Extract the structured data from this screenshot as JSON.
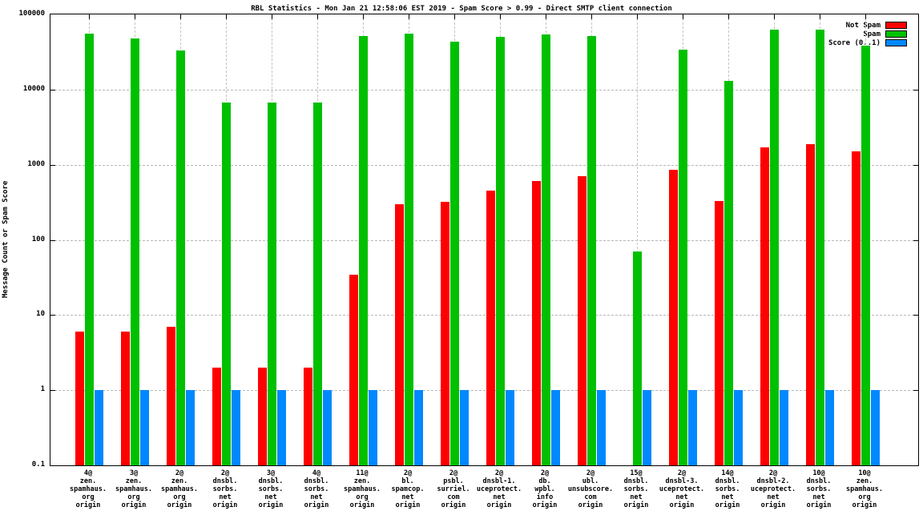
{
  "chart": {
    "title": "RBL Statistics - Mon Jan 21 12:58:06 EST 2019 - Spam Score > 0.99 - Direct SMTP client connection",
    "ylabel": "Message Count or Spam Score"
  },
  "chart_data": {
    "type": "bar",
    "title": "RBL Statistics - Mon Jan 21 12:58:06 EST 2019 - Spam Score > 0.99 - Direct SMTP client connection",
    "ylabel": "Message Count or Spam Score",
    "y_scale": "log",
    "ylim": [
      0.1,
      100000
    ],
    "y_ticks": [
      "100000",
      "10000",
      "1000",
      "100",
      "10",
      "1",
      "0.1"
    ],
    "grid": true,
    "legend_position": "top-right",
    "categories": [
      [
        "4@",
        "zen.",
        "spamhaus.",
        "org",
        "origin"
      ],
      [
        "3@",
        "zen.",
        "spamhaus.",
        "org",
        "origin"
      ],
      [
        "2@",
        "zen.",
        "spamhaus.",
        "org",
        "origin"
      ],
      [
        "2@",
        "dnsbl.",
        "sorbs.",
        "net",
        "origin"
      ],
      [
        "3@",
        "dnsbl.",
        "sorbs.",
        "net",
        "origin"
      ],
      [
        "4@",
        "dnsbl.",
        "sorbs.",
        "net",
        "origin"
      ],
      [
        "11@",
        "zen.",
        "spamhaus.",
        "org",
        "origin"
      ],
      [
        "2@",
        "bl.",
        "spamcop.",
        "net",
        "origin"
      ],
      [
        "2@",
        "psbl.",
        "surriel.",
        "com",
        "origin"
      ],
      [
        "2@",
        "dnsbl-1.",
        "uceprotect.",
        "net",
        "origin"
      ],
      [
        "2@",
        "db.",
        "wpbl.",
        "info",
        "origin"
      ],
      [
        "2@",
        "ubl.",
        "unsubscore.",
        "com",
        "origin"
      ],
      [
        "15@",
        "dnsbl.",
        "sorbs.",
        "net",
        "origin"
      ],
      [
        "2@",
        "dnsbl-3.",
        "uceprotect.",
        "net",
        "origin"
      ],
      [
        "14@",
        "dnsbl.",
        "sorbs.",
        "net",
        "origin"
      ],
      [
        "2@",
        "dnsbl-2.",
        "uceprotect.",
        "net",
        "origin"
      ],
      [
        "10@",
        "dnsbl.",
        "sorbs.",
        "net",
        "origin"
      ],
      [
        "10@",
        "zen.",
        "spamhaus.",
        "org",
        "origin"
      ]
    ],
    "series": [
      {
        "name": "Not Spam",
        "color": "#ff0000",
        "values": [
          6,
          6,
          7,
          2,
          2,
          2,
          34,
          300,
          320,
          450,
          600,
          700,
          null,
          850,
          330,
          1700,
          1900,
          1500
        ]
      },
      {
        "name": "Spam",
        "color": "#00c000",
        "values": [
          55000,
          48000,
          33000,
          6800,
          6800,
          6800,
          52000,
          55000,
          43000,
          50000,
          54000,
          52000,
          70,
          34000,
          13000,
          63000,
          63000,
          38000
        ]
      },
      {
        "name": "Score (0..1)",
        "color": "#0088ff",
        "values": [
          1,
          1,
          1,
          1,
          1,
          1,
          1,
          1,
          1,
          1,
          1,
          1,
          1,
          1,
          1,
          1,
          1,
          1
        ]
      }
    ]
  }
}
